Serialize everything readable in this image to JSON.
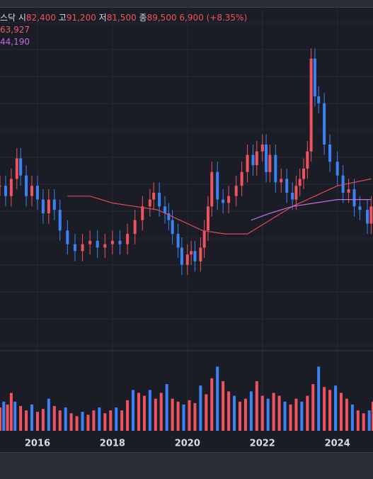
{
  "legend": {
    "name_fragment": "스닥",
    "open_label": "시",
    "open_value": "82,400",
    "high_label": "고",
    "high_value": "91,200",
    "low_label": "저",
    "low_value": "81,500",
    "close_label": "종",
    "close_value": "89,500",
    "change": "6,900 (+8.35%)",
    "ma1_value": "63,927",
    "ma2_value": "44,190"
  },
  "colors": {
    "background": "#1b1d26",
    "up": "#f0525f",
    "down": "#3b82f6",
    "ma1": "#e04858",
    "ma2": "#c36ce0",
    "grid": "#262935",
    "axis_text": "#d9dbe3"
  },
  "chart_data": {
    "type": "candlestick",
    "x_axis": {
      "tick_labels": [
        "2016",
        "2018",
        "2020",
        "2022",
        "2024"
      ]
    },
    "grid": true,
    "current_price_line": 89500,
    "price_series": [
      [
        2015.0,
        58
      ],
      [
        2015.15,
        55
      ],
      [
        2015.3,
        60
      ],
      [
        2015.45,
        66
      ],
      [
        2015.55,
        61
      ],
      [
        2015.7,
        55
      ],
      [
        2015.85,
        58
      ],
      [
        2016.0,
        54
      ],
      [
        2016.15,
        50
      ],
      [
        2016.3,
        54
      ],
      [
        2016.45,
        51
      ],
      [
        2016.6,
        45
      ],
      [
        2016.8,
        41
      ],
      [
        2017.0,
        39
      ],
      [
        2017.2,
        41
      ],
      [
        2017.4,
        42
      ],
      [
        2017.6,
        40
      ],
      [
        2017.8,
        41
      ],
      [
        2018.0,
        42
      ],
      [
        2018.2,
        41
      ],
      [
        2018.4,
        44
      ],
      [
        2018.6,
        48
      ],
      [
        2018.8,
        52
      ],
      [
        2019.0,
        54
      ],
      [
        2019.1,
        56
      ],
      [
        2019.25,
        52
      ],
      [
        2019.4,
        50
      ],
      [
        2019.5,
        48
      ],
      [
        2019.6,
        44
      ],
      [
        2019.75,
        40
      ],
      [
        2019.85,
        35
      ],
      [
        2020.0,
        38
      ],
      [
        2020.1,
        39
      ],
      [
        2020.2,
        36
      ],
      [
        2020.35,
        40
      ],
      [
        2020.45,
        45
      ],
      [
        2020.55,
        52
      ],
      [
        2020.65,
        62
      ],
      [
        2020.8,
        54
      ],
      [
        2020.95,
        53
      ],
      [
        2021.1,
        55
      ],
      [
        2021.3,
        58
      ],
      [
        2021.45,
        62
      ],
      [
        2021.6,
        67
      ],
      [
        2021.75,
        64
      ],
      [
        2021.85,
        68
      ],
      [
        2022.0,
        70
      ],
      [
        2022.1,
        62
      ],
      [
        2022.2,
        67
      ],
      [
        2022.35,
        59
      ],
      [
        2022.5,
        60
      ],
      [
        2022.65,
        56
      ],
      [
        2022.8,
        54
      ],
      [
        2022.9,
        58
      ],
      [
        2023.0,
        60
      ],
      [
        2023.1,
        63
      ],
      [
        2023.2,
        68
      ],
      [
        2023.3,
        95
      ],
      [
        2023.4,
        84
      ],
      [
        2023.5,
        82
      ],
      [
        2023.65,
        70
      ],
      [
        2023.8,
        65
      ],
      [
        2024.0,
        61
      ],
      [
        2024.15,
        56
      ],
      [
        2024.3,
        57
      ],
      [
        2024.45,
        52
      ],
      [
        2024.6,
        51
      ],
      [
        2024.8,
        47
      ],
      [
        2024.9,
        52
      ]
    ],
    "ma_series": [
      {
        "values": [
          [
            2016.8,
            55
          ],
          [
            2017.4,
            55
          ],
          [
            2018.0,
            53
          ],
          [
            2018.6,
            52
          ],
          [
            2019.2,
            51
          ],
          [
            2019.8,
            48
          ],
          [
            2020.4,
            45
          ],
          [
            2021.0,
            44
          ],
          [
            2021.6,
            44
          ],
          [
            2022.2,
            48
          ],
          [
            2022.8,
            52
          ],
          [
            2023.4,
            55
          ],
          [
            2024.0,
            58
          ],
          [
            2024.9,
            60
          ]
        ]
      },
      {
        "values": [
          [
            2021.7,
            48
          ],
          [
            2022.2,
            50
          ],
          [
            2022.8,
            52
          ],
          [
            2023.4,
            53
          ],
          [
            2024.0,
            54
          ],
          [
            2024.9,
            54
          ]
        ]
      }
    ],
    "volume": [
      [
        2015.0,
        16
      ],
      [
        2015.1,
        20
      ],
      [
        2015.2,
        18
      ],
      [
        2015.3,
        26
      ],
      [
        2015.4,
        20
      ],
      [
        2015.55,
        17
      ],
      [
        2015.7,
        14
      ],
      [
        2015.85,
        18
      ],
      [
        2016.0,
        13
      ],
      [
        2016.15,
        15
      ],
      [
        2016.3,
        22
      ],
      [
        2016.45,
        17
      ],
      [
        2016.6,
        14
      ],
      [
        2016.75,
        16
      ],
      [
        2016.9,
        12
      ],
      [
        2017.05,
        10
      ],
      [
        2017.2,
        13
      ],
      [
        2017.35,
        11
      ],
      [
        2017.5,
        14
      ],
      [
        2017.65,
        16
      ],
      [
        2017.8,
        12
      ],
      [
        2017.95,
        14
      ],
      [
        2018.1,
        16
      ],
      [
        2018.25,
        14
      ],
      [
        2018.4,
        21
      ],
      [
        2018.55,
        28
      ],
      [
        2018.7,
        26
      ],
      [
        2018.85,
        24
      ],
      [
        2019.0,
        28
      ],
      [
        2019.15,
        22
      ],
      [
        2019.3,
        26
      ],
      [
        2019.45,
        32
      ],
      [
        2019.6,
        22
      ],
      [
        2019.75,
        20
      ],
      [
        2019.9,
        18
      ],
      [
        2020.05,
        21
      ],
      [
        2020.2,
        19
      ],
      [
        2020.35,
        31
      ],
      [
        2020.5,
        25
      ],
      [
        2020.65,
        36
      ],
      [
        2020.8,
        44
      ],
      [
        2020.95,
        34
      ],
      [
        2021.1,
        27
      ],
      [
        2021.25,
        24
      ],
      [
        2021.4,
        20
      ],
      [
        2021.55,
        22
      ],
      [
        2021.7,
        27
      ],
      [
        2021.85,
        34
      ],
      [
        2022.0,
        24
      ],
      [
        2022.15,
        22
      ],
      [
        2022.3,
        26
      ],
      [
        2022.45,
        24
      ],
      [
        2022.6,
        20
      ],
      [
        2022.75,
        18
      ],
      [
        2022.9,
        22
      ],
      [
        2023.05,
        20
      ],
      [
        2023.2,
        24
      ],
      [
        2023.35,
        32
      ],
      [
        2023.5,
        44
      ],
      [
        2023.65,
        30
      ],
      [
        2023.8,
        28
      ],
      [
        2023.95,
        31
      ],
      [
        2024.1,
        26
      ],
      [
        2024.25,
        22
      ],
      [
        2024.4,
        18
      ],
      [
        2024.55,
        14
      ],
      [
        2024.7,
        12
      ],
      [
        2024.85,
        14
      ],
      [
        2024.95,
        20
      ]
    ]
  }
}
